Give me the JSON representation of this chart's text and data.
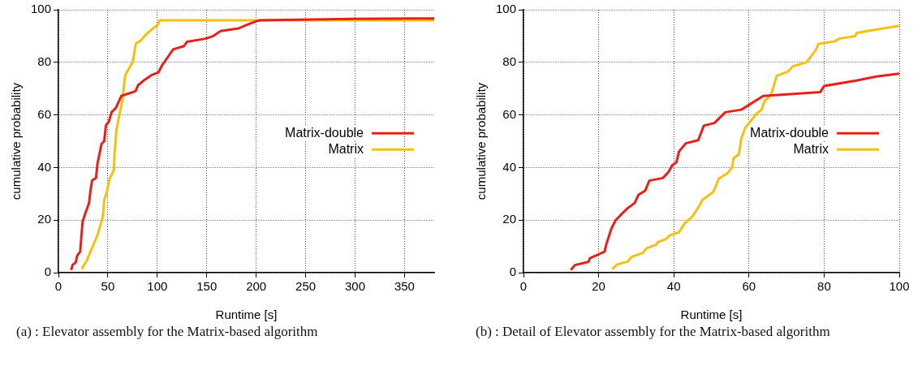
{
  "chart_data": [
    {
      "type": "line",
      "xlabel": "Runtime [s]",
      "ylabel": "cumulative probability",
      "xlim": [
        0,
        380
      ],
      "xticks": [
        0,
        50,
        100,
        150,
        200,
        250,
        300,
        350
      ],
      "ylim": [
        0,
        100
      ],
      "yticks": [
        0,
        20,
        40,
        60,
        80,
        100
      ],
      "grid": true,
      "legend": "right",
      "annotations": [
        "(a) : Elevator assembly for the Matrix-based algorithm"
      ],
      "series": [
        {
          "name": "Matrix-double",
          "color": "#e8201a",
          "x": [
            12.9,
            14.3,
            17.5,
            19,
            22,
            24.4,
            27,
            31,
            32,
            34,
            38,
            39.5,
            42,
            43.6,
            46.3,
            48,
            51,
            53.7,
            58,
            63.6,
            78,
            80.6,
            87.4,
            94,
            101,
            105,
            110.8,
            116,
            127,
            130,
            149,
            157,
            164,
            182,
            190,
            200.7,
            204,
            297,
            380
          ],
          "values": [
            1,
            2.9,
            3.9,
            6.5,
            8,
            19.3,
            22.4,
            26.5,
            30,
            35,
            36,
            41.5,
            46,
            49,
            50,
            56,
            57.4,
            61,
            62.6,
            67.2,
            69,
            71.3,
            73.4,
            75.1,
            76.1,
            79,
            82.1,
            84.9,
            86.2,
            87.8,
            89,
            90.1,
            91.9,
            92.9,
            94.2,
            95.7,
            96,
            96.5,
            96.7
          ]
        },
        {
          "name": "Matrix",
          "color": "#f5c010",
          "x": [
            23.6,
            25.8,
            28.5,
            31.3,
            35.4,
            39.5,
            42.2,
            45,
            46.3,
            49,
            51.8,
            56,
            56.7,
            58.7,
            61.4,
            64.7,
            67.4,
            71,
            75,
            78.4,
            83.3,
            89,
            95.7,
            100.3,
            102.5,
            380
          ],
          "values": [
            1.3,
            2.9,
            4.4,
            7,
            10.6,
            14.2,
            17.8,
            21.4,
            27.6,
            30.7,
            35.8,
            38.9,
            45,
            54.3,
            59.5,
            65.6,
            74.9,
            77.5,
            80,
            87.2,
            88.3,
            90.8,
            92.9,
            94.2,
            96,
            96
          ]
        }
      ]
    },
    {
      "type": "line",
      "xlabel": "Runtime [s]",
      "ylabel": "cumulative probability",
      "xlim": [
        0,
        100
      ],
      "xticks": [
        0,
        20,
        40,
        60,
        80,
        100
      ],
      "ylim": [
        0,
        100
      ],
      "yticks": [
        0,
        20,
        40,
        60,
        80,
        100
      ],
      "grid": true,
      "legend": "right",
      "annotations": [
        "(b) : Detail of Elevator assembly for the Matrix-based algorithm"
      ],
      "series": [
        {
          "name": "Matrix-double",
          "color": "#e8201a",
          "x": [
            12.6,
            13.7,
            17.3,
            17.7,
            21.6,
            22,
            23.4,
            24.5,
            26,
            27.7,
            29.6,
            30.6,
            32.4,
            33.5,
            37.1,
            38.6,
            39.6,
            40.7,
            41.4,
            43.2,
            46.5,
            48,
            50.8,
            53.7,
            58,
            63.8,
            79,
            80,
            88.3,
            94,
            100
          ],
          "values": [
            1,
            2.9,
            4.1,
            5.5,
            8,
            10.6,
            16.8,
            19.9,
            22.1,
            24.5,
            26.5,
            29.6,
            31.2,
            35,
            36,
            38.3,
            40.9,
            42,
            46.1,
            49.2,
            50.4,
            55.9,
            56.9,
            61,
            62,
            67.2,
            68.7,
            71,
            73,
            74.6,
            75.7
          ]
        },
        {
          "name": "Matrix",
          "color": "#f5c010",
          "x": [
            23.6,
            24.9,
            27.7,
            28.8,
            31.7,
            32.8,
            35.3,
            35.7,
            37.8,
            39,
            41.4,
            42.9,
            45,
            46.8,
            47.6,
            50.5,
            52,
            54.4,
            55.5,
            55.9,
            57.3,
            58,
            59.1,
            60.9,
            62,
            63.4,
            64.1,
            65.9,
            67.4,
            70.3,
            71.7,
            75.3,
            77.8,
            78.5,
            82.9,
            84,
            88.3,
            88.7,
            100
          ],
          "values": [
            1.3,
            3.1,
            4.2,
            6,
            7.5,
            9.3,
            10.6,
            11.6,
            12.7,
            14.2,
            15.4,
            18.8,
            21.4,
            25.5,
            27.6,
            30.7,
            35.8,
            37.9,
            40,
            43.5,
            45,
            51.2,
            55.3,
            58.4,
            60.5,
            62,
            65.1,
            67.7,
            74.9,
            76.4,
            78.5,
            80,
            84.7,
            87,
            88,
            89,
            90,
            91.2,
            93.9
          ]
        }
      ]
    }
  ]
}
